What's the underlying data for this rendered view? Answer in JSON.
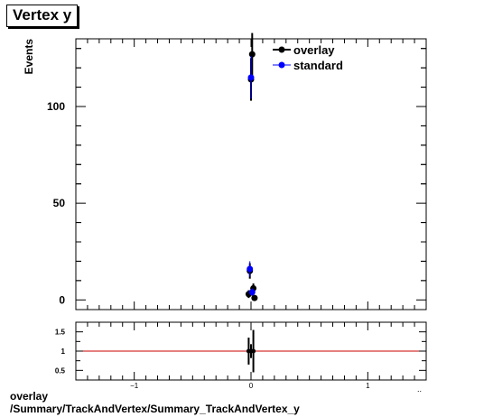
{
  "title": "Vertex y",
  "footer": {
    "line1": "overlay",
    "line2": "/Summary/TrackAndVertex/Summary_TrackAndVertex_y"
  },
  "colors": {
    "overlay": "#000000",
    "standard": "#0000ff",
    "ratio_line": "#cc0000"
  },
  "chart_data": [
    {
      "type": "scatter",
      "panel": "main",
      "ylabel": "Events",
      "xlim": [
        -1.5,
        1.5
      ],
      "ylim": [
        -5,
        135
      ],
      "y_ticks": [
        0,
        50,
        100
      ],
      "y_tick_labels": [
        "0",
        "50",
        "100"
      ],
      "legend": "top-right",
      "series": [
        {
          "name": "overlay",
          "points": [
            {
              "x": -0.02,
              "y": 3,
              "err": 2
            },
            {
              "x": -0.01,
              "y": 15,
              "err": 4
            },
            {
              "x": 0.0,
              "y": 114,
              "err": 11
            },
            {
              "x": 0.01,
              "y": 127,
              "err": 11
            },
            {
              "x": 0.02,
              "y": 6,
              "err": 2.5
            },
            {
              "x": 0.03,
              "y": 1,
              "err": 1
            }
          ]
        },
        {
          "name": "standard",
          "points": [
            {
              "x": -0.01,
              "y": 16,
              "err": 4
            },
            {
              "x": 0.0,
              "y": 115,
              "err": 11
            },
            {
              "x": 0.01,
              "y": 4,
              "err": 2
            }
          ]
        }
      ]
    },
    {
      "type": "scatter",
      "panel": "ratio",
      "xlim": [
        -1.5,
        1.5
      ],
      "ylim": [
        0.25,
        1.75
      ],
      "x_ticks": [
        -1,
        0,
        1
      ],
      "x_tick_labels": [
        "−1",
        "0",
        "1"
      ],
      "y_ticks": [
        0.5,
        1,
        1.5
      ],
      "y_tick_labels": [
        "0.5",
        "1",
        "1.5"
      ],
      "reference_line": 1,
      "points": [
        {
          "x": -0.02,
          "y": 1.0,
          "err": 0.35
        },
        {
          "x": 0.0,
          "y": 1.0,
          "err": 0.18
        },
        {
          "x": 0.02,
          "y": 1.0,
          "err": 0.55
        }
      ]
    }
  ]
}
